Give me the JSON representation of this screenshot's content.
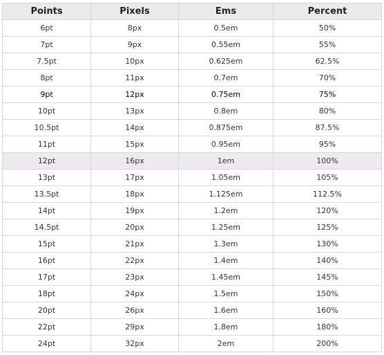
{
  "table": {
    "headers": [
      "Points",
      "Pixels",
      "Ems",
      "Percent"
    ],
    "rows": [
      [
        "6pt",
        "8px",
        "0.5em",
        "50%"
      ],
      [
        "7pt",
        "9px",
        "0.55em",
        "55%"
      ],
      [
        "7.5pt",
        "10px",
        "0.625em",
        "62.5%"
      ],
      [
        "8pt",
        "11px",
        "0.7em",
        "70%"
      ],
      [
        "9pt",
        "12px",
        "0.75em",
        "75%"
      ],
      [
        "10pt",
        "13px",
        "0.8em",
        "80%"
      ],
      [
        "10.5pt",
        "14px",
        "0.875em",
        "87.5%"
      ],
      [
        "11pt",
        "15px",
        "0.95em",
        "95%"
      ],
      [
        "12pt",
        "16px",
        "1em",
        "100%"
      ],
      [
        "13pt",
        "17px",
        "1.05em",
        "105%"
      ],
      [
        "13.5pt",
        "18px",
        "1.125em",
        "112.5%"
      ],
      [
        "14pt",
        "19px",
        "1.2em",
        "120%"
      ],
      [
        "14.5pt",
        "20px",
        "1.25em",
        "125%"
      ],
      [
        "15pt",
        "21px",
        "1.3em",
        "130%"
      ],
      [
        "16pt",
        "22px",
        "1.4em",
        "140%"
      ],
      [
        "17pt",
        "23px",
        "1.45em",
        "145%"
      ],
      [
        "18pt",
        "24px",
        "1.5em",
        "150%"
      ],
      [
        "20pt",
        "26px",
        "1.6em",
        "160%"
      ],
      [
        "22pt",
        "29px",
        "1.8em",
        "180%"
      ],
      [
        "24pt",
        "32px",
        "2em",
        "200%"
      ]
    ]
  },
  "colors": {
    "header_bg": "#ebebeb",
    "highlight_row_bg": "#efeaef",
    "border": "#d6d6d6"
  }
}
